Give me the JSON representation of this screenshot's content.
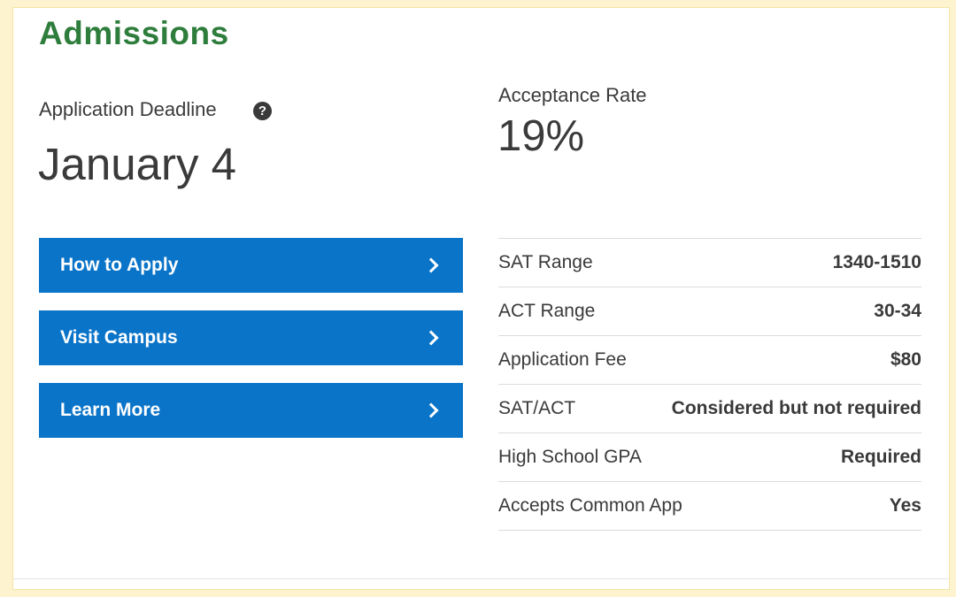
{
  "admissions": {
    "title": "Admissions",
    "deadline_label": "Application Deadline",
    "help_icon": "question-circle-icon",
    "deadline_value": "January 4",
    "acceptance_label": "Acceptance Rate",
    "acceptance_value": "19%"
  },
  "buttons": [
    {
      "label": "How to Apply",
      "icon": "chevron-right-icon"
    },
    {
      "label": "Visit Campus",
      "icon": "chevron-right-icon"
    },
    {
      "label": "Learn More",
      "icon": "chevron-right-icon"
    }
  ],
  "stats": [
    {
      "label": "SAT Range",
      "value": "1340-1510"
    },
    {
      "label": "ACT Range",
      "value": "30-34"
    },
    {
      "label": "Application Fee",
      "value": "$80"
    },
    {
      "label": "SAT/ACT",
      "value": "Considered but not required"
    },
    {
      "label": "High School GPA",
      "value": "Required"
    },
    {
      "label": "Accepts Common App",
      "value": "Yes"
    }
  ],
  "colors": {
    "title_green": "#2e7d3c",
    "button_blue": "#0a74c9",
    "background_yellow": "#fdf3cf",
    "text_dark": "#3a3a3a"
  }
}
